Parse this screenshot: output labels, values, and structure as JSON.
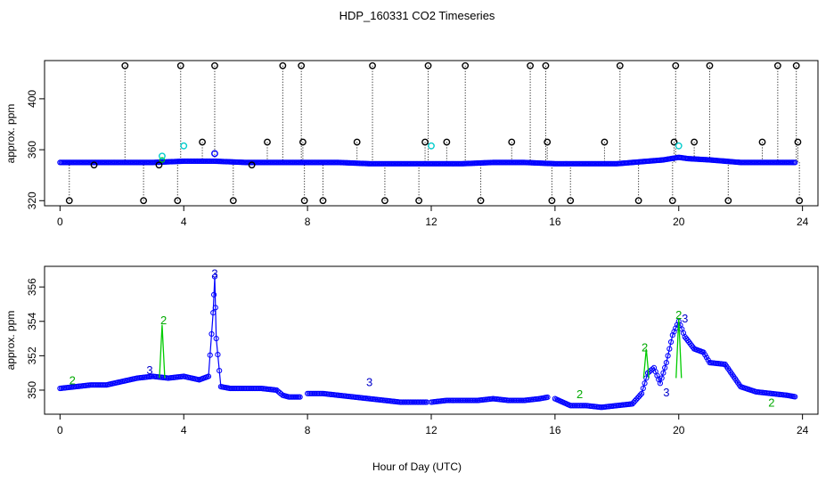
{
  "figure": {
    "title": "HDP_160331  CO2 Timeseries",
    "xlabel": "Hour of Day (UTC)"
  },
  "colors": {
    "axes": "#000000",
    "scan": "#0000ff",
    "cal": "#00cc00",
    "cyan": "#00cccc"
  },
  "chart_data": [
    {
      "type": "scatter",
      "panel": "top",
      "title": "",
      "xlabel": "",
      "ylabel": "approx. ppm",
      "xlim": [
        -0.5,
        24.5
      ],
      "ylim": [
        316,
        430
      ],
      "xticks": [
        "0",
        "4",
        "8",
        "12",
        "16",
        "20",
        "24"
      ],
      "yticks": [
        "320",
        "360",
        "400"
      ],
      "baseline_series": {
        "name": "",
        "x": [
          0.0,
          1.0,
          2.0,
          3.0,
          4.0,
          5.0,
          6.0,
          7.0,
          8.0,
          9.0,
          10.0,
          11.0,
          12.0,
          13.0,
          14.0,
          15.0,
          16.0,
          17.0,
          18.0,
          18.5,
          19.0,
          19.5,
          20.0,
          20.3,
          21.0,
          22.0,
          23.0,
          23.8
        ],
        "y": [
          350,
          350,
          350,
          350,
          351,
          351,
          350,
          350,
          350,
          350,
          349,
          349,
          349,
          349,
          350,
          350,
          349,
          349,
          349,
          350,
          351,
          352,
          354,
          353,
          352,
          350,
          350,
          350
        ]
      },
      "outliers": {
        "x": [
          0.3,
          1.1,
          2.1,
          2.7,
          3.2,
          3.8,
          3.9,
          4.6,
          5.0,
          5.6,
          6.2,
          6.7,
          7.2,
          7.8,
          7.85,
          7.9,
          8.5,
          9.6,
          10.1,
          10.5,
          11.6,
          11.8,
          11.9,
          12.5,
          13.1,
          13.6,
          14.6,
          15.2,
          15.7,
          15.75,
          15.9,
          16.5,
          17.6,
          18.1,
          18.7,
          19.8,
          19.85,
          19.9,
          20.5,
          21.0,
          21.6,
          22.7,
          23.2,
          23.8,
          23.85,
          23.9
        ],
        "y": [
          320,
          348,
          426,
          320,
          348,
          320,
          426,
          366,
          426,
          320,
          348,
          366,
          426,
          426,
          366,
          320,
          320,
          366,
          426,
          320,
          320,
          366,
          426,
          366,
          426,
          320,
          366,
          426,
          426,
          366,
          320,
          320,
          366,
          426,
          320,
          320,
          366,
          426,
          366,
          426,
          320,
          366,
          426,
          426,
          366,
          320
        ]
      },
      "cyan_marks": {
        "x": [
          3.3,
          4.0,
          12.0,
          20.0
        ],
        "y": [
          355,
          363,
          363,
          363
        ]
      },
      "blue_marks": {
        "x": [
          5.0
        ],
        "y": [
          357
        ]
      }
    },
    {
      "type": "line",
      "panel": "bottom",
      "title": "",
      "xlabel": "",
      "ylabel": "approx. ppm",
      "xlim": [
        -0.5,
        24.5
      ],
      "ylim": [
        348.6,
        357.2
      ],
      "xticks": [
        "0",
        "4",
        "8",
        "12",
        "16",
        "20",
        "24"
      ],
      "yticks": [
        "350",
        "352",
        "354",
        "356"
      ],
      "segments": [
        {
          "x": [
            0.0,
            0.5,
            1.0,
            1.5,
            2.0,
            2.5,
            3.0,
            3.5,
            4.0,
            4.5,
            4.8,
            4.95,
            5.0,
            5.05,
            5.2,
            5.5,
            6.0,
            6.5,
            7.0,
            7.2,
            7.4,
            7.8
          ],
          "y": [
            350.1,
            350.2,
            350.3,
            350.3,
            350.5,
            350.7,
            350.8,
            350.7,
            350.8,
            350.6,
            350.8,
            354.5,
            356.6,
            353.0,
            350.2,
            350.1,
            350.1,
            350.1,
            350.0,
            349.7,
            349.6,
            349.6
          ]
        },
        {
          "x": [
            8.0,
            8.5,
            9.0,
            9.5,
            10.0,
            10.5,
            11.0,
            11.5,
            11.9
          ],
          "y": [
            349.8,
            349.8,
            349.7,
            349.6,
            349.5,
            349.4,
            349.3,
            349.3,
            349.3
          ]
        },
        {
          "x": [
            12.0,
            12.5,
            13.0,
            13.5,
            14.0,
            14.5,
            15.0,
            15.5,
            15.8
          ],
          "y": [
            349.3,
            349.4,
            349.4,
            349.4,
            349.5,
            349.4,
            349.4,
            349.5,
            349.6
          ]
        },
        {
          "x": [
            16.0,
            16.5,
            17.0,
            17.5,
            18.0,
            18.5,
            18.8,
            19.0,
            19.2,
            19.4,
            19.6,
            19.8,
            20.0,
            20.2,
            20.5,
            20.8,
            21.0,
            21.5,
            22.0,
            22.5,
            23.0,
            23.5,
            23.8
          ],
          "y": [
            349.5,
            349.1,
            349.1,
            349.0,
            349.1,
            349.2,
            349.8,
            351.0,
            351.3,
            350.4,
            351.6,
            353.2,
            354.0,
            353.1,
            352.4,
            352.2,
            351.6,
            351.5,
            350.2,
            349.9,
            349.8,
            349.7,
            349.6
          ]
        }
      ],
      "cal_spikes": {
        "x": [
          3.3,
          18.95,
          20.0
        ],
        "y": [
          353.8,
          352.4,
          354.2
        ]
      },
      "labels": [
        {
          "text": "3",
          "x": 5.0,
          "y": 356.8,
          "color": "#0000cc"
        },
        {
          "text": "2",
          "x": 3.35,
          "y": 354.1,
          "color": "#00aa00"
        },
        {
          "text": "3",
          "x": 2.9,
          "y": 351.2,
          "color": "#0000cc"
        },
        {
          "text": "3",
          "x": 10.0,
          "y": 350.5,
          "color": "#0000cc"
        },
        {
          "text": "2",
          "x": 16.8,
          "y": 349.8,
          "color": "#00aa00"
        },
        {
          "text": "2",
          "x": 18.9,
          "y": 352.5,
          "color": "#00aa00"
        },
        {
          "text": "2",
          "x": 20.0,
          "y": 354.4,
          "color": "#00aa00"
        },
        {
          "text": "3",
          "x": 20.2,
          "y": 354.2,
          "color": "#0000cc"
        },
        {
          "text": "3",
          "x": 19.6,
          "y": 349.9,
          "color": "#0000cc"
        },
        {
          "text": "2",
          "x": 0.4,
          "y": 350.6,
          "color": "#00aa00"
        },
        {
          "text": "2",
          "x": 23.0,
          "y": 349.3,
          "color": "#00aa00"
        }
      ]
    }
  ]
}
